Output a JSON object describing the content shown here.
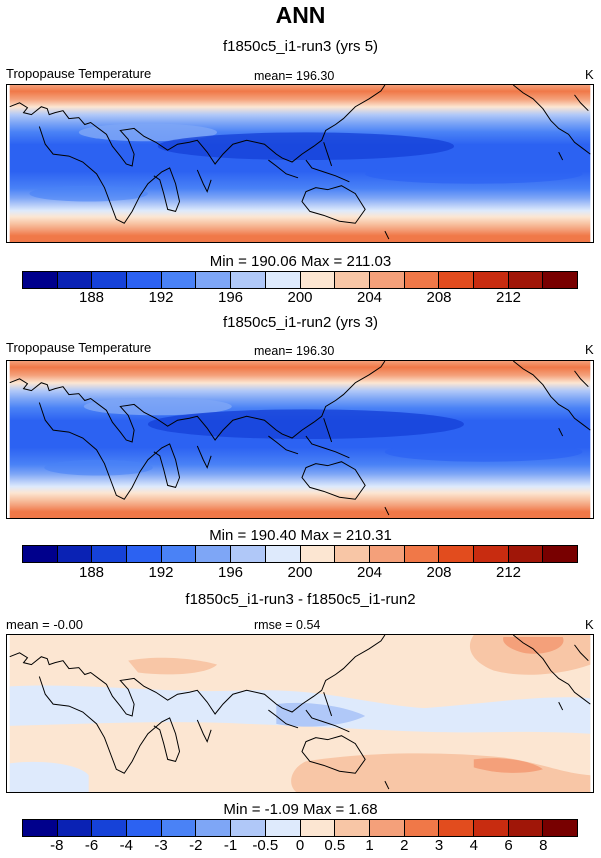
{
  "page_title": "ANN",
  "palette": [
    "#00008c",
    "#0a22b4",
    "#1642d8",
    "#2c62f2",
    "#4a82f6",
    "#7ea6f6",
    "#b0c8f8",
    "#deeafc",
    "#fce6d2",
    "#f8c6a6",
    "#f4a07a",
    "#f07848",
    "#e24c1e",
    "#c82c10",
    "#a01608",
    "#780000"
  ],
  "chart_data": [
    {
      "type": "heatmap",
      "subtitle": "f1850c5_i1-run3 (yrs 5)",
      "variable_label": "Tropopause Temperature",
      "mean_label": "mean= 196.30",
      "units": "K",
      "stats_label": "Min = 190.06 Max = 211.03",
      "min": 190.06,
      "max": 211.03,
      "mean": 196.3,
      "colorbar_levels": [
        186,
        188,
        190,
        192,
        194,
        196,
        198,
        200,
        202,
        204,
        206,
        208,
        210,
        212,
        214
      ],
      "colorbar_tick_labels": [
        "188",
        "192",
        "196",
        "200",
        "204",
        "208",
        "212"
      ],
      "map": "global cylindrical equidistant, longitude 0-360 centered on Greenwich at left edge",
      "zonal_profile_latitudes": [
        -90,
        -70,
        -50,
        -35,
        -20,
        0,
        20,
        35,
        50,
        70,
        90
      ],
      "zonal_profile_values": [
        209,
        211,
        210,
        202,
        194,
        191,
        193,
        200,
        206,
        209,
        208
      ]
    },
    {
      "type": "heatmap",
      "subtitle": "f1850c5_i1-run2 (yrs 3)",
      "variable_label": "Tropopause Temperature",
      "mean_label": "mean= 196.30",
      "units": "K",
      "stats_label": "Min = 190.40 Max = 210.31",
      "min": 190.4,
      "max": 210.31,
      "mean": 196.3,
      "colorbar_levels": [
        186,
        188,
        190,
        192,
        194,
        196,
        198,
        200,
        202,
        204,
        206,
        208,
        210,
        212,
        214
      ],
      "colorbar_tick_labels": [
        "188",
        "192",
        "196",
        "200",
        "204",
        "208",
        "212"
      ],
      "map": "global cylindrical equidistant, longitude 0-360 centered on Greenwich at left edge",
      "zonal_profile_latitudes": [
        -90,
        -70,
        -50,
        -35,
        -20,
        0,
        20,
        35,
        50,
        70,
        90
      ],
      "zonal_profile_values": [
        208,
        210,
        210,
        202,
        194,
        191,
        193,
        200,
        206,
        209,
        208
      ]
    },
    {
      "type": "heatmap",
      "subtitle": "f1850c5_i1-run3 - f1850c5_i1-run2",
      "mean_label": "mean =  -0.00",
      "rmse_label": "rmse =   0.54",
      "units": "K",
      "stats_label": "Min =  -1.09 Max =   1.68",
      "min": -1.09,
      "max": 1.68,
      "mean": -0.0,
      "rmse": 0.54,
      "colorbar_levels": [
        -10,
        -8,
        -6,
        -4,
        -3,
        -2,
        -1,
        -0.5,
        0,
        0.5,
        1,
        2,
        3,
        4,
        6,
        8,
        10
      ],
      "colorbar_tick_labels": [
        "-8",
        "-6",
        "-4",
        "-3",
        "-2",
        "-1",
        "-0.5",
        "0",
        "0.5",
        "1",
        "2",
        "3",
        "4",
        "6",
        "8"
      ],
      "map": "global cylindrical equidistant, longitude 0-360 centered on Greenwich at left edge"
    }
  ]
}
